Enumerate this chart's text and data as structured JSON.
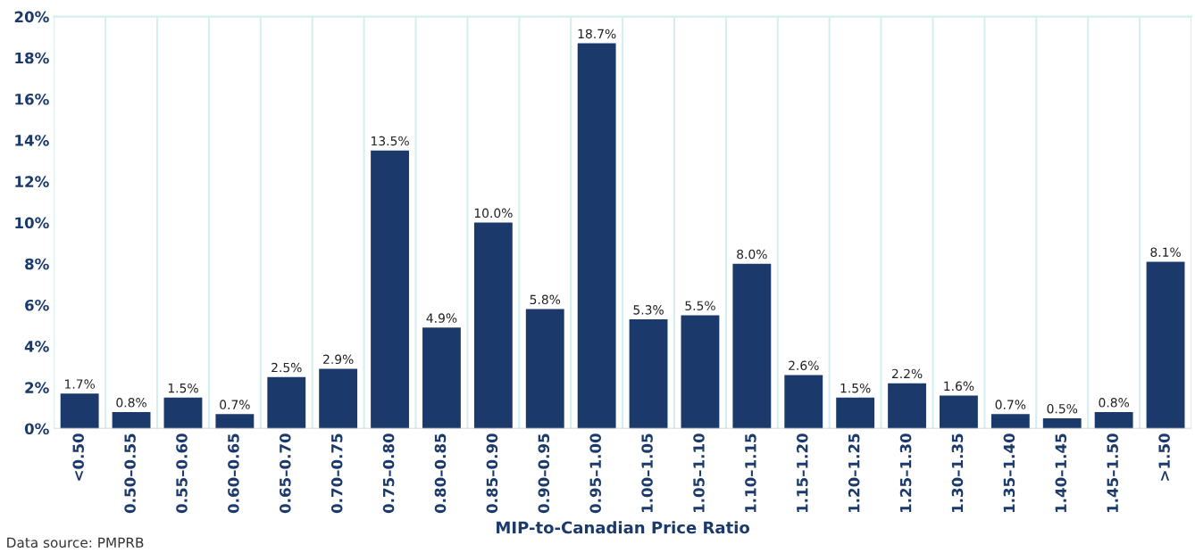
{
  "chart_data": {
    "type": "bar",
    "xlabel": "MIP-to-Canadian Price Ratio",
    "categories": [
      "<0.50",
      "0.50–0.55",
      "0.55–0.60",
      "0.60–0.65",
      "0.65–0.70",
      "0.70–0.75",
      "0.75–0.80",
      "0.80–0.85",
      "0.85–0.90",
      "0.90–0.95",
      "0.95–1.00",
      "1.00–1.05",
      "1.05–1.10",
      "1.10–1.15",
      "1.15–1.20",
      "1.20–1.25",
      "1.25–1.30",
      "1.30–1.35",
      "1.35–1.40",
      "1.40–1.45",
      "1.45–1.50",
      ">1.50"
    ],
    "values": [
      1.7,
      0.8,
      1.5,
      0.7,
      2.5,
      2.9,
      13.5,
      4.9,
      10.0,
      5.8,
      18.7,
      5.3,
      5.5,
      8.0,
      2.6,
      1.5,
      2.2,
      1.6,
      0.7,
      0.5,
      0.8,
      8.1
    ],
    "value_labels": [
      "1.7%",
      "0.8%",
      "1.5%",
      "0.7%",
      "2.5%",
      "2.9%",
      "13.5%",
      "4.9%",
      "10.0%",
      "5.8%",
      "18.7%",
      "5.3%",
      "5.5%",
      "8.0%",
      "2.6%",
      "1.5%",
      "2.2%",
      "1.6%",
      "0.7%",
      "0.5%",
      "0.8%",
      "8.1%"
    ],
    "color": "#1b3a6b",
    "ylim": [
      0,
      20
    ],
    "yticks": [
      {
        "value": 0,
        "label": "0%"
      },
      {
        "value": 2,
        "label": "2%"
      },
      {
        "value": 4,
        "label": "4%"
      },
      {
        "value": 6,
        "label": "6%"
      },
      {
        "value": 8,
        "label": "8%"
      },
      {
        "value": 10,
        "label": "10%"
      },
      {
        "value": 12,
        "label": "12%"
      },
      {
        "value": 14,
        "label": "14%"
      },
      {
        "value": 16,
        "label": "16%"
      },
      {
        "value": 18,
        "label": "18%"
      },
      {
        "value": 20,
        "label": "20%"
      }
    ],
    "grid": "x",
    "annotations": [
      "Data source: PMPRB"
    ]
  }
}
